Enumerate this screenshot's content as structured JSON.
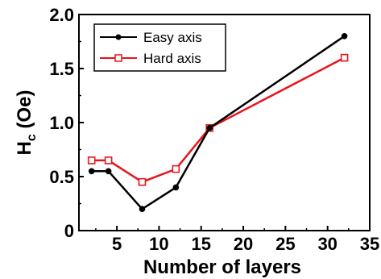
{
  "chart_data": {
    "type": "line",
    "xlabel": "Number of layers",
    "ylabel_main": "H",
    "ylabel_sub": "c",
    "ylabel_unit": " (Oe)",
    "xlim": [
      0.5,
      35
    ],
    "ylim": [
      0,
      2.0
    ],
    "xticks": [
      5,
      10,
      15,
      20,
      25,
      30,
      35
    ],
    "yticks": [
      0,
      0.5,
      1.0,
      1.5,
      2.0
    ],
    "xtick_labels": [
      "5",
      "10",
      "15",
      "20",
      "25",
      "30",
      "35"
    ],
    "ytick_labels": [
      "0",
      "0.5",
      "1.0",
      "1.5",
      "2.0"
    ],
    "grid": false,
    "legend_position": "top-left",
    "series": [
      {
        "name": "Easy axis",
        "color": "#000000",
        "marker": "filled-circle",
        "x": [
          2,
          4,
          8,
          12,
          16,
          32
        ],
        "y": [
          0.55,
          0.55,
          0.2,
          0.4,
          0.95,
          1.8
        ]
      },
      {
        "name": "Hard axis",
        "color": "#e8141c",
        "marker": "open-square",
        "x": [
          2,
          4,
          8,
          12,
          16,
          32
        ],
        "y": [
          0.65,
          0.65,
          0.45,
          0.57,
          0.95,
          1.6
        ]
      }
    ]
  }
}
